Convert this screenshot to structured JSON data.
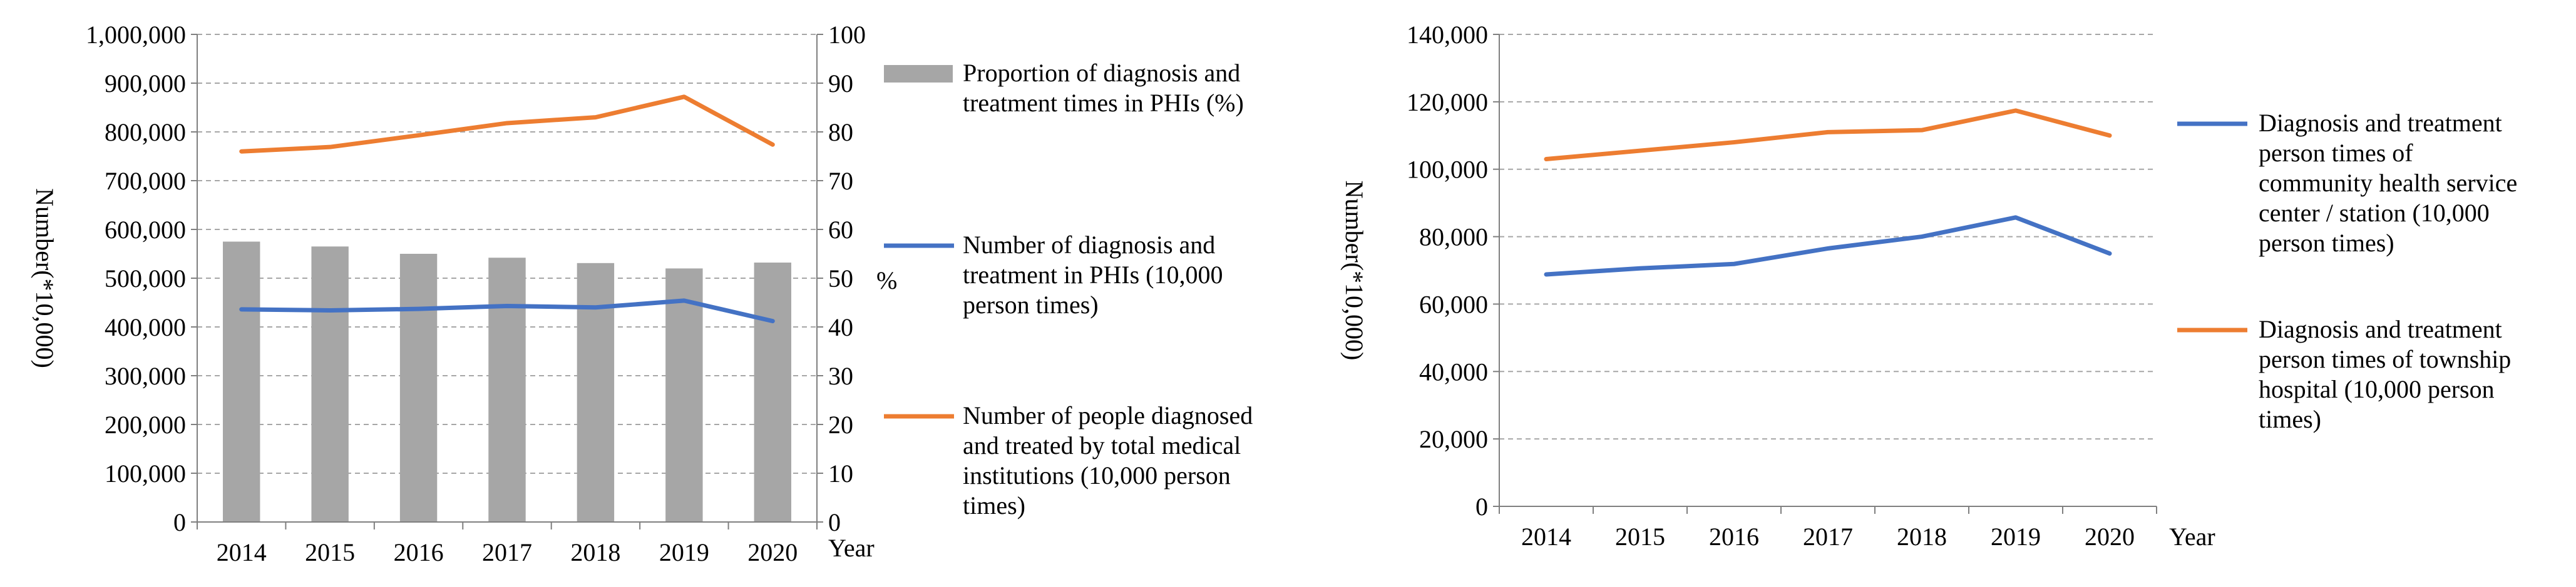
{
  "colors": {
    "bar": "#a6a6a6",
    "blue": "#4472c4",
    "orange": "#ed7d31",
    "axis": "#7f7f7f",
    "grid": "#a6a6a6"
  },
  "chart_data": [
    {
      "type": "bar+line",
      "categories": [
        "2014",
        "2015",
        "2016",
        "2017",
        "2018",
        "2019",
        "2020"
      ],
      "xlabel": "Year",
      "ylabel": "Number(*10,000)",
      "y2label": "%",
      "ylim": [
        0,
        1000000
      ],
      "y2lim": [
        0,
        100
      ],
      "grid": true,
      "legend_position": "right",
      "y_ticks": [
        "0",
        "100,000",
        "200,000",
        "300,000",
        "400,000",
        "500,000",
        "600,000",
        "700,000",
        "800,000",
        "900,000",
        "1,000,000"
      ],
      "y2_ticks": [
        "0",
        "10",
        "20",
        "30",
        "40",
        "50",
        "60",
        "70",
        "80",
        "90",
        "100"
      ],
      "series": [
        {
          "name": "Proportion of diagnosis and treatment times in PHIs (%)",
          "legend_lines": [
            "Proportion of diagnosis and",
            "treatment times in PHIs (%)"
          ],
          "kind": "bar",
          "axis": "right",
          "color": "#a6a6a6",
          "values": [
            57.5,
            56.5,
            55.0,
            54.2,
            53.1,
            52.0,
            53.2
          ]
        },
        {
          "name": "Number of diagnosis and treatment in PHIs (10,000 person times)",
          "legend_lines": [
            "Number of diagnosis and",
            "treatment in PHIs (10,000",
            "person times)"
          ],
          "kind": "line",
          "axis": "left",
          "color": "#4472c4",
          "values": [
            436000,
            434000,
            437000,
            443000,
            440000,
            454000,
            412000
          ]
        },
        {
          "name": "Number of people diagnosed and treated by total medical institutions (10,000 person times)",
          "legend_lines": [
            "Number of people diagnosed",
            "and treated by total medical",
            "institutions (10,000 person",
            "times)"
          ],
          "kind": "line",
          "axis": "left",
          "color": "#ed7d31",
          "values": [
            760000,
            769000,
            793000,
            818000,
            830000,
            872000,
            774000
          ]
        }
      ]
    },
    {
      "type": "line",
      "categories": [
        "2014",
        "2015",
        "2016",
        "2017",
        "2018",
        "2019",
        "2020"
      ],
      "xlabel": "Year",
      "ylabel": "Number(*10,000)",
      "ylim": [
        0,
        140000
      ],
      "grid": true,
      "legend_position": "right",
      "y_ticks": [
        "0",
        "20,000",
        "40,000",
        "60,000",
        "80,000",
        "100,000",
        "120,000",
        "140,000"
      ],
      "series": [
        {
          "name": "Diagnosis and treatment person times of community health service center / station (10,000 person times)",
          "legend_lines": [
            "Diagnosis and treatment",
            "person times of",
            "community health service",
            "center / station (10,000",
            "person times)"
          ],
          "kind": "line",
          "color": "#4472c4",
          "values": [
            68800,
            70600,
            71900,
            76500,
            80000,
            85700,
            75000
          ]
        },
        {
          "name": "Diagnosis and treatment person times of township hospital (10,000 person times)",
          "legend_lines": [
            "Diagnosis and treatment",
            "person times of township",
            "hospital (10,000 person",
            "times)"
          ],
          "kind": "line",
          "color": "#ed7d31",
          "values": [
            103000,
            105500,
            108000,
            111000,
            111600,
            117400,
            110000
          ]
        }
      ]
    }
  ]
}
